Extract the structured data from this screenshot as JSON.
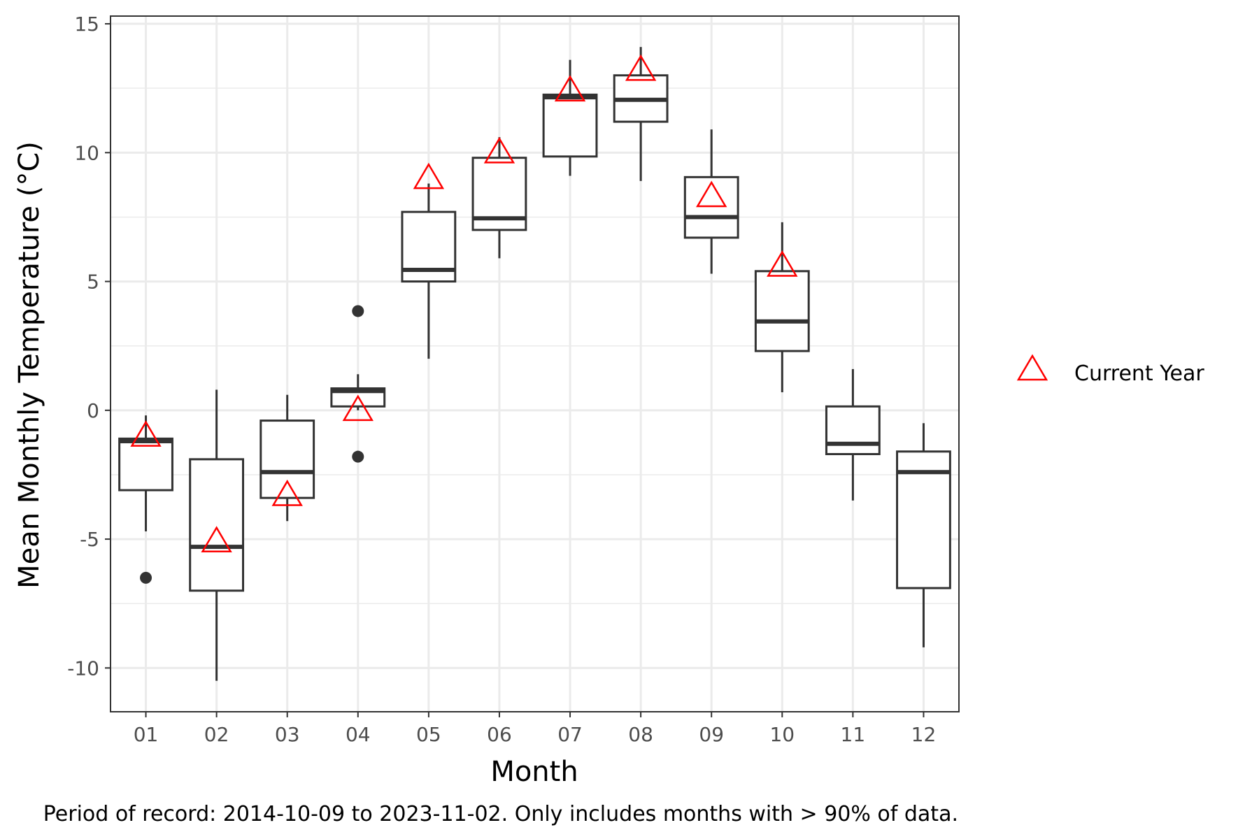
{
  "chart_data": {
    "type": "box",
    "title": "",
    "xlabel": "Month",
    "ylabel": "Mean Monthly Temperature (°C)",
    "caption": "Period of record: 2014-10-09 to 2023-11-02. Only includes months with > 90% of data.",
    "categories": [
      "01",
      "02",
      "03",
      "04",
      "05",
      "06",
      "07",
      "08",
      "09",
      "10",
      "11",
      "12"
    ],
    "ylim": [
      -11.7,
      15.3
    ],
    "yticks": [
      -10,
      -5,
      0,
      5,
      10,
      15
    ],
    "ytick_labels": [
      "-10",
      "-5",
      "0",
      "5",
      "10",
      "15"
    ],
    "grid": true,
    "legend": {
      "position": "right",
      "entries": [
        {
          "label": "Current Year",
          "marker": "open-triangle",
          "color": "#ff0000"
        }
      ]
    },
    "colors": {
      "box": "#333333",
      "current_year": "#ff0000",
      "grid": "#ebebeb",
      "panel_border": "#333333"
    },
    "boxes": [
      {
        "month": "01",
        "min": -4.7,
        "q1": -3.1,
        "median": -1.2,
        "q3": -1.1,
        "max": -0.2,
        "outliers": [
          -6.5
        ]
      },
      {
        "month": "02",
        "min": -10.5,
        "q1": -7.0,
        "median": -5.3,
        "q3": -1.9,
        "max": 0.8,
        "outliers": []
      },
      {
        "month": "03",
        "min": -4.3,
        "q1": -3.4,
        "median": -2.4,
        "q3": -0.4,
        "max": 0.6,
        "outliers": []
      },
      {
        "month": "04",
        "min": 0.0,
        "q1": 0.15,
        "median": 0.75,
        "q3": 0.85,
        "max": 1.4,
        "outliers": [
          3.85,
          -1.8
        ]
      },
      {
        "month": "05",
        "min": 2.0,
        "q1": 5.0,
        "median": 5.45,
        "q3": 7.7,
        "max": 8.8,
        "outliers": []
      },
      {
        "month": "06",
        "min": 5.9,
        "q1": 7.0,
        "median": 7.45,
        "q3": 9.8,
        "max": 10.6,
        "outliers": []
      },
      {
        "month": "07",
        "min": 9.1,
        "q1": 9.85,
        "median": 12.15,
        "q3": 12.25,
        "max": 13.6,
        "outliers": []
      },
      {
        "month": "08",
        "min": 8.9,
        "q1": 11.2,
        "median": 12.05,
        "q3": 13.0,
        "max": 14.1,
        "outliers": []
      },
      {
        "month": "09",
        "min": 5.3,
        "q1": 6.7,
        "median": 7.5,
        "q3": 9.05,
        "max": 10.9,
        "outliers": []
      },
      {
        "month": "10",
        "min": 0.7,
        "q1": 2.3,
        "median": 3.45,
        "q3": 5.4,
        "max": 7.3,
        "outliers": []
      },
      {
        "month": "11",
        "min": -3.5,
        "q1": -1.7,
        "median": -1.3,
        "q3": 0.15,
        "max": 1.6,
        "outliers": []
      },
      {
        "month": "12",
        "min": -9.2,
        "q1": -6.9,
        "median": -2.4,
        "q3": -1.6,
        "max": -0.5,
        "outliers": []
      }
    ],
    "current_year": {
      "name": "Current Year",
      "points": [
        {
          "month": "01",
          "value": -1.0
        },
        {
          "month": "02",
          "value": -5.1
        },
        {
          "month": "03",
          "value": -3.3
        },
        {
          "month": "04",
          "value": 0.0
        },
        {
          "month": "05",
          "value": 9.0
        },
        {
          "month": "06",
          "value": 10.0
        },
        {
          "month": "07",
          "value": 12.4
        },
        {
          "month": "08",
          "value": 13.2
        },
        {
          "month": "09",
          "value": 8.3
        },
        {
          "month": "10",
          "value": 5.6
        }
      ]
    }
  }
}
